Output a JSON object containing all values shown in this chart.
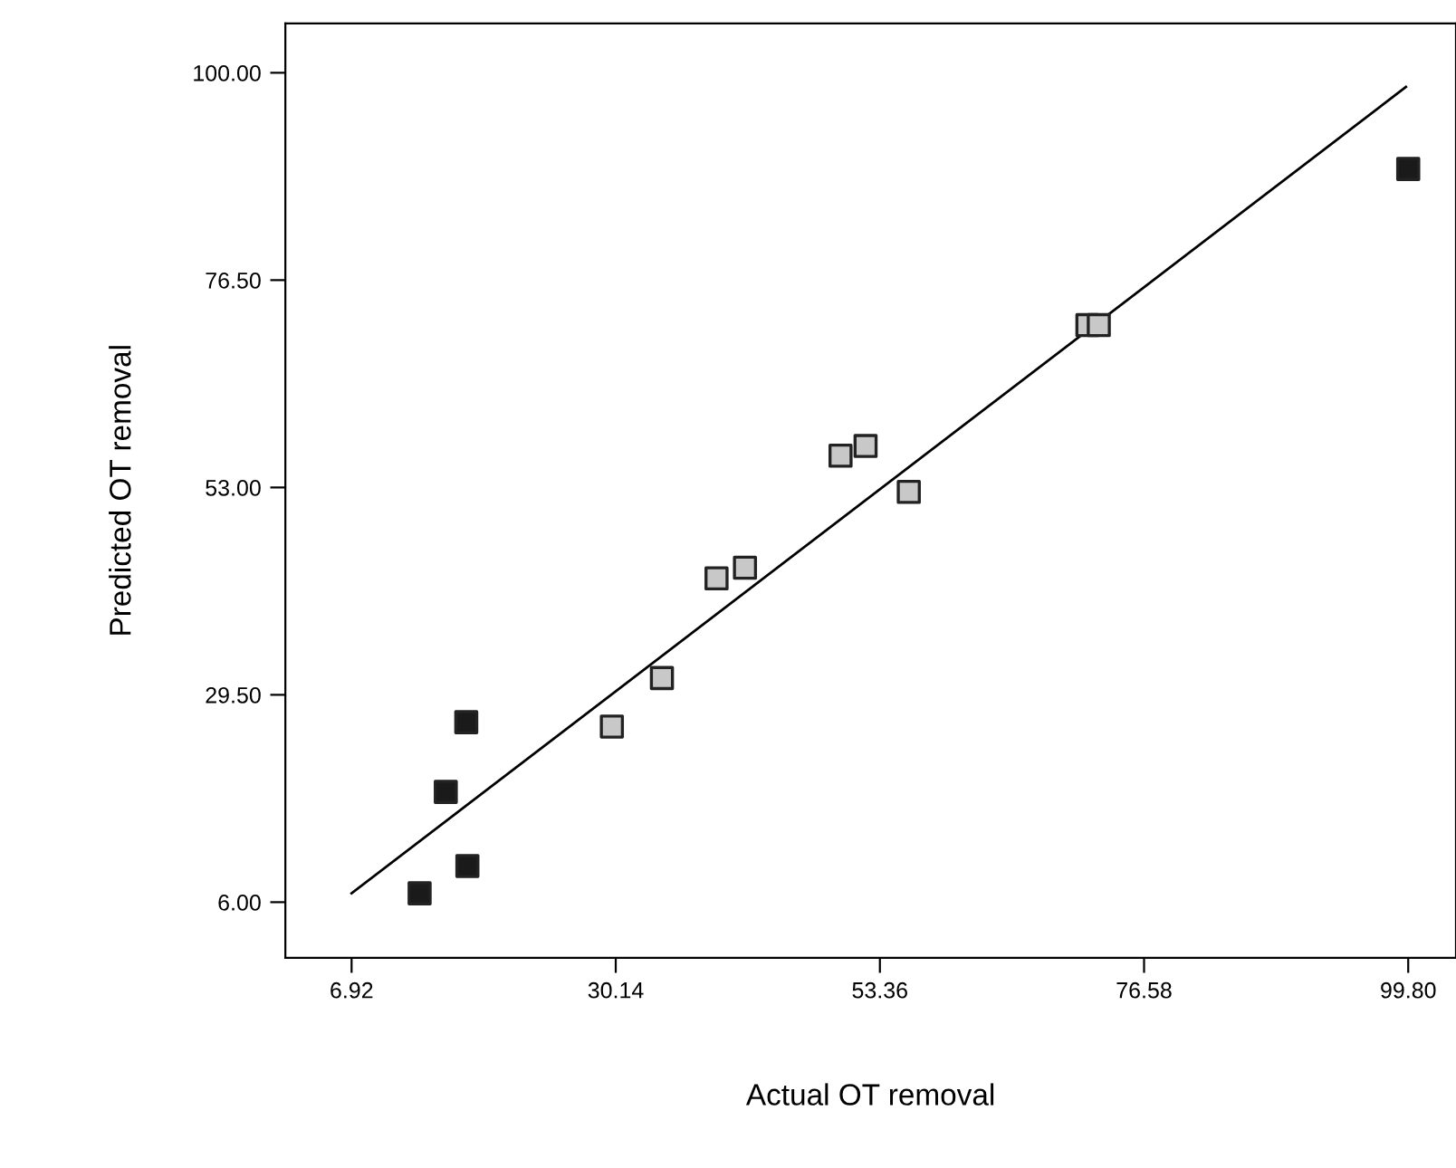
{
  "chart_data": {
    "type": "scatter",
    "xlabel": "Actual OT removal",
    "ylabel": "Predicted OT removal",
    "marker": "square",
    "grid": false,
    "legend": false,
    "xlim": [
      1.1,
      104
    ],
    "ylim": [
      -0.3,
      105.6
    ],
    "xticks": [
      {
        "value": 6.92,
        "label": "6.92"
      },
      {
        "value": 30.14,
        "label": "30.14"
      },
      {
        "value": 53.36,
        "label": "53.36"
      },
      {
        "value": 76.58,
        "label": "76.58"
      },
      {
        "value": 99.8,
        "label": "99.80"
      }
    ],
    "yticks": [
      {
        "value": 6,
        "label": "6.00"
      },
      {
        "value": 29.5,
        "label": "29.50"
      },
      {
        "value": 53,
        "label": "53.00"
      },
      {
        "value": 76.5,
        "label": "76.50"
      },
      {
        "value": 100,
        "label": "100.00"
      }
    ],
    "series": [
      {
        "color": "#1a1a1a",
        "x": [
          12.9,
          17.1,
          15.2,
          17.0,
          99.8
        ],
        "values": [
          7.0,
          10.1,
          18.5,
          26.4,
          89.1
        ]
      },
      {
        "color": "#c8c8c8",
        "x": [
          29.8,
          34.2,
          39.0,
          41.5,
          49.9,
          52.1,
          55.9,
          71.6,
          72.6
        ],
        "values": [
          25.9,
          31.4,
          42.7,
          43.9,
          56.6,
          57.7,
          52.5,
          71.4,
          71.4
        ]
      },
      {
        "type": "line",
        "color": "#000000",
        "marker": "none",
        "x": [
          6.92,
          99.6
        ],
        "values": [
          7.0,
          98.4
        ]
      }
    ]
  }
}
